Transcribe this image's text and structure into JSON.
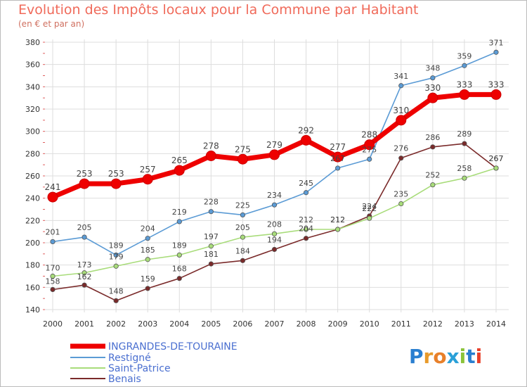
{
  "title": "Evolution des Impôts locaux pour la Commune par Habitant",
  "subtitle": "(en € et par an)",
  "logo": {
    "letters": [
      "P",
      "r",
      "o",
      "x",
      "i",
      "t",
      "i"
    ],
    "colors": [
      "#2a7fd0",
      "#e89a2a",
      "#e8802a",
      "#2aa0d8",
      "#8bc33a",
      "#2a7fd0",
      "#e8402a"
    ]
  },
  "chart_data": {
    "type": "line",
    "x": [
      2000,
      2001,
      2002,
      2003,
      2004,
      2005,
      2006,
      2007,
      2008,
      2009,
      2010,
      2011,
      2012,
      2013,
      2014
    ],
    "ylim": [
      140,
      380
    ],
    "yticks": [
      140,
      160,
      180,
      200,
      220,
      240,
      260,
      280,
      300,
      320,
      340,
      360,
      380
    ],
    "grid": true,
    "legend_position": "bottom-left",
    "series": [
      {
        "name": "INGRANDES-DE-TOURAINE",
        "color": "#ee0000",
        "values": [
          241,
          253,
          253,
          257,
          265,
          278,
          275,
          279,
          292,
          277,
          288,
          310,
          330,
          333,
          333
        ]
      },
      {
        "name": "Restigné",
        "color": "#5b9bd5",
        "values": [
          201,
          205,
          189,
          204,
          219,
          228,
          225,
          234,
          245,
          267,
          275,
          341,
          348,
          359,
          371
        ]
      },
      {
        "name": "Saint-Patrice",
        "color": "#a8dc7a",
        "values": [
          170,
          173,
          179,
          185,
          189,
          197,
          205,
          208,
          212,
          212,
          222,
          235,
          252,
          258,
          267
        ]
      },
      {
        "name": "Benais",
        "color": "#7a2a2a",
        "values": [
          158,
          162,
          148,
          159,
          168,
          181,
          184,
          194,
          204,
          212,
          224,
          276,
          286,
          289,
          267
        ]
      }
    ]
  }
}
